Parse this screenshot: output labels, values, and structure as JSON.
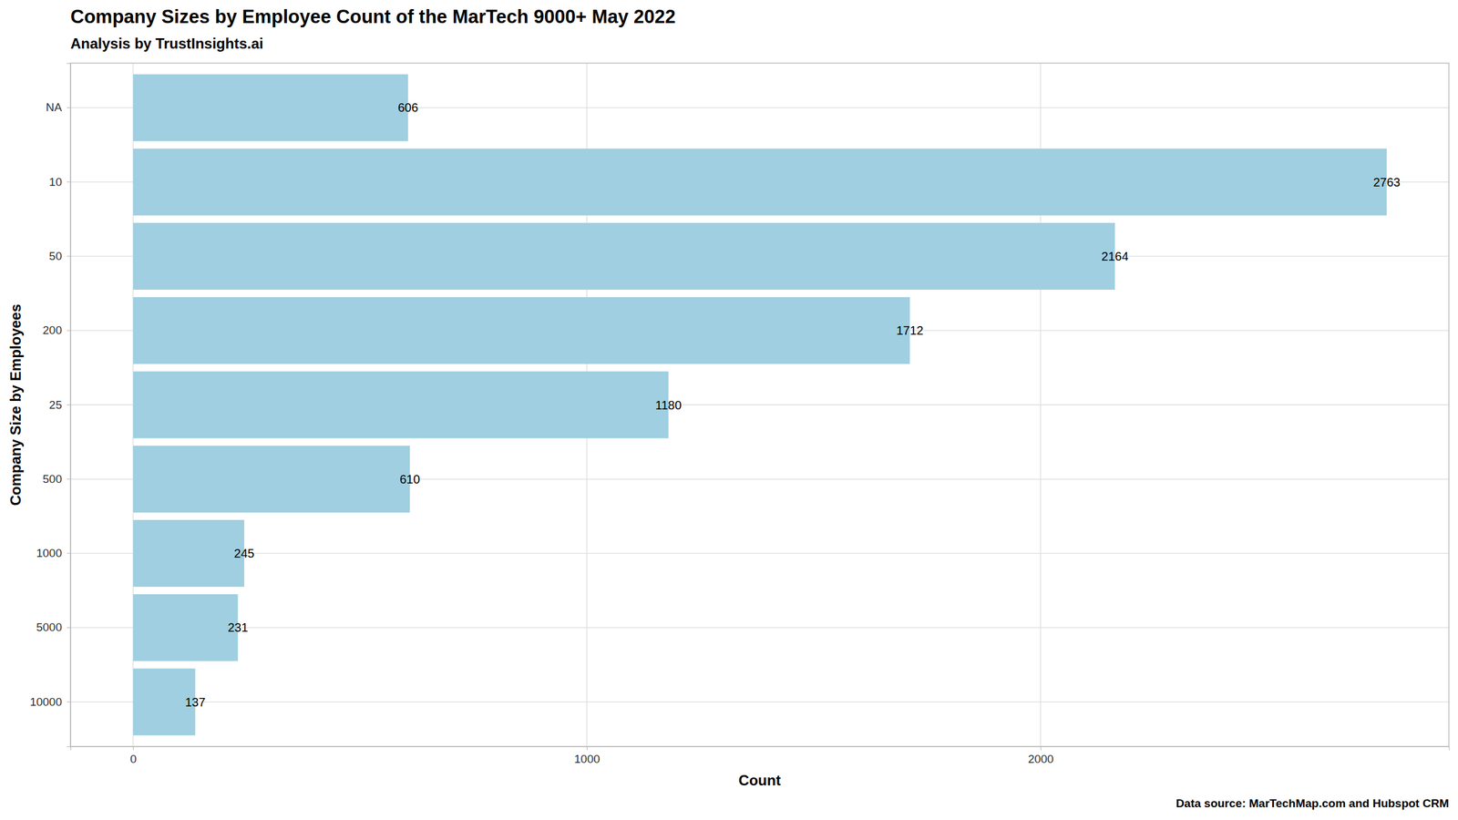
{
  "chart_data": {
    "type": "bar",
    "orientation": "horizontal",
    "title": "Company Sizes by Employee Count of the MarTech 9000+ May 2022",
    "subtitle": "Analysis by TrustInsights.ai",
    "x_label": "Count",
    "y_label": "Company Size by Employees",
    "caption": "Data source: MarTechMap.com and Hubspot CRM",
    "categories": [
      "NA",
      "10",
      "50",
      "200",
      "25",
      "500",
      "1000",
      "5000",
      "10000"
    ],
    "values": [
      606,
      2763,
      2164,
      1712,
      1180,
      610,
      245,
      231,
      137
    ],
    "color": "#9fcfe0",
    "xlim": [
      -138,
      2900
    ],
    "xticks": [
      0,
      1000,
      2000
    ],
    "grid": true,
    "data_labels": true
  }
}
